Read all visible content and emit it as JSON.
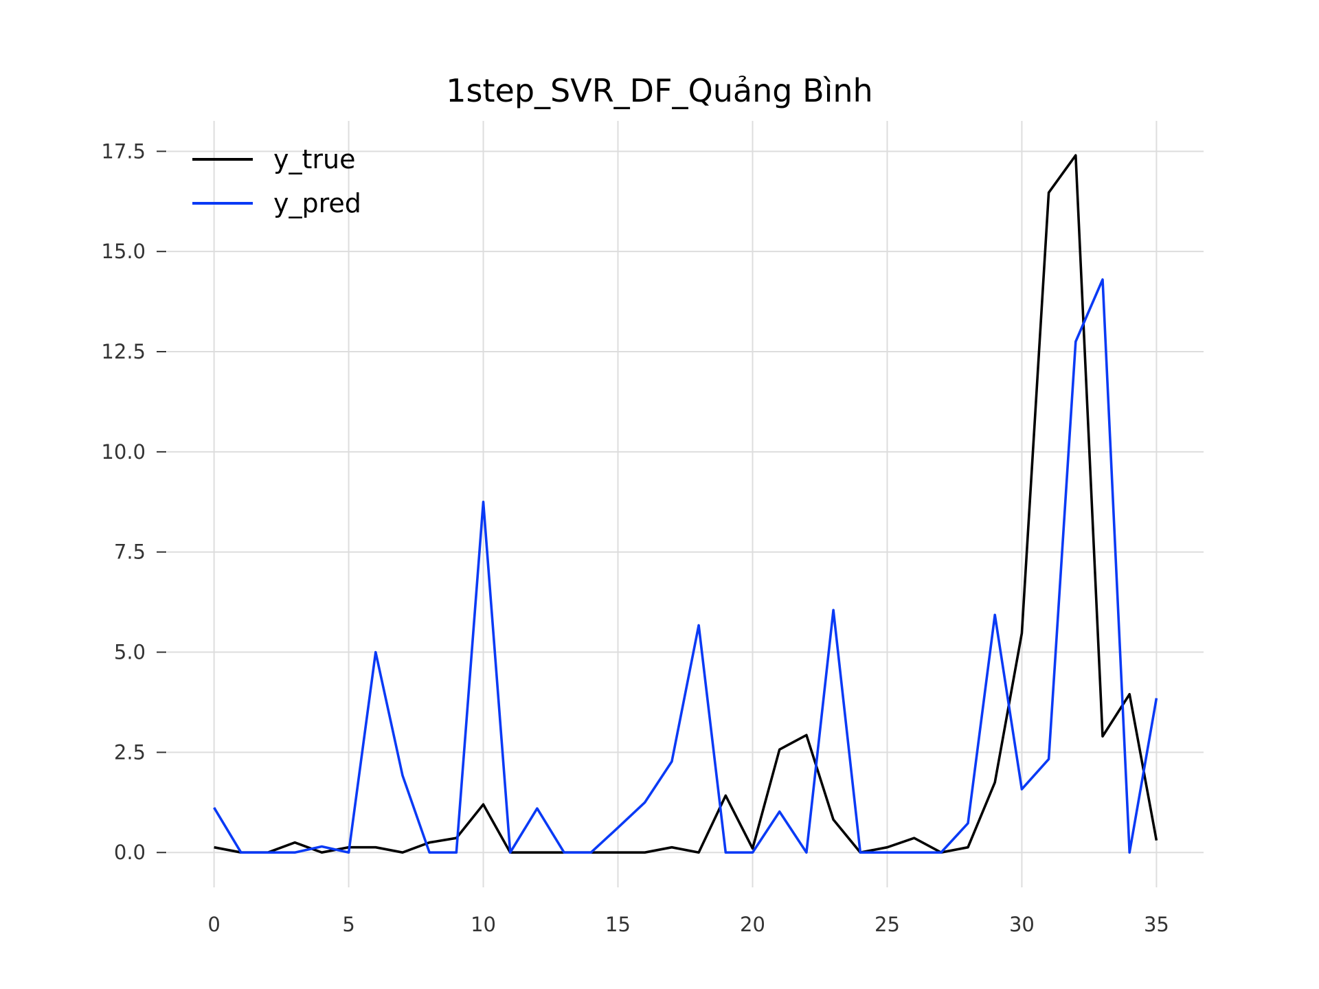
{
  "chart_data": {
    "type": "line",
    "title": "1step_SVR_DF_Quảng Bình",
    "xlabel": "",
    "ylabel": "",
    "xlim": [
      -1.75,
      36.75
    ],
    "ylim": [
      -0.87,
      18.26
    ],
    "xticks": [
      0,
      5,
      10,
      15,
      20,
      25,
      30,
      35
    ],
    "xtick_labels": [
      "0",
      "5",
      "10",
      "15",
      "20",
      "25",
      "30",
      "35"
    ],
    "yticks": [
      0,
      2.5,
      5,
      7.5,
      10,
      12.5,
      15,
      17.5
    ],
    "ytick_labels": [
      "0.0",
      "2.5",
      "5.0",
      "7.5",
      "10.0",
      "12.5",
      "15.0",
      "17.5"
    ],
    "grid": true,
    "legend": "top-left",
    "x": [
      0,
      1,
      2,
      3,
      4,
      5,
      6,
      7,
      8,
      9,
      10,
      11,
      12,
      13,
      14,
      15,
      16,
      17,
      18,
      19,
      20,
      21,
      22,
      23,
      24,
      25,
      26,
      27,
      28,
      29,
      30,
      31,
      32,
      33,
      34,
      35
    ],
    "series": [
      {
        "name": "y_true",
        "color": "#000000",
        "values": [
          0.13,
          0,
          0,
          0.25,
          0,
          0.13,
          0.13,
          0,
          0.25,
          0.36,
          1.2,
          0,
          0,
          0,
          0,
          0,
          0,
          0.13,
          0,
          1.42,
          0.1,
          2.57,
          2.93,
          0.82,
          0,
          0.13,
          0.36,
          0,
          0.13,
          1.75,
          5.47,
          16.47,
          17.4,
          2.9,
          3.95,
          0.3
        ]
      },
      {
        "name": "y_pred",
        "color": "#0a3af5",
        "values": [
          1.12,
          0,
          0,
          0,
          0.15,
          0,
          5.0,
          1.92,
          0,
          0,
          8.75,
          0,
          1.1,
          0,
          0,
          0.62,
          1.25,
          2.27,
          5.67,
          0,
          0,
          1.02,
          0,
          6.05,
          0,
          0,
          0,
          0,
          0.73,
          5.93,
          1.58,
          2.33,
          12.75,
          14.3,
          0,
          3.85
        ]
      }
    ]
  }
}
